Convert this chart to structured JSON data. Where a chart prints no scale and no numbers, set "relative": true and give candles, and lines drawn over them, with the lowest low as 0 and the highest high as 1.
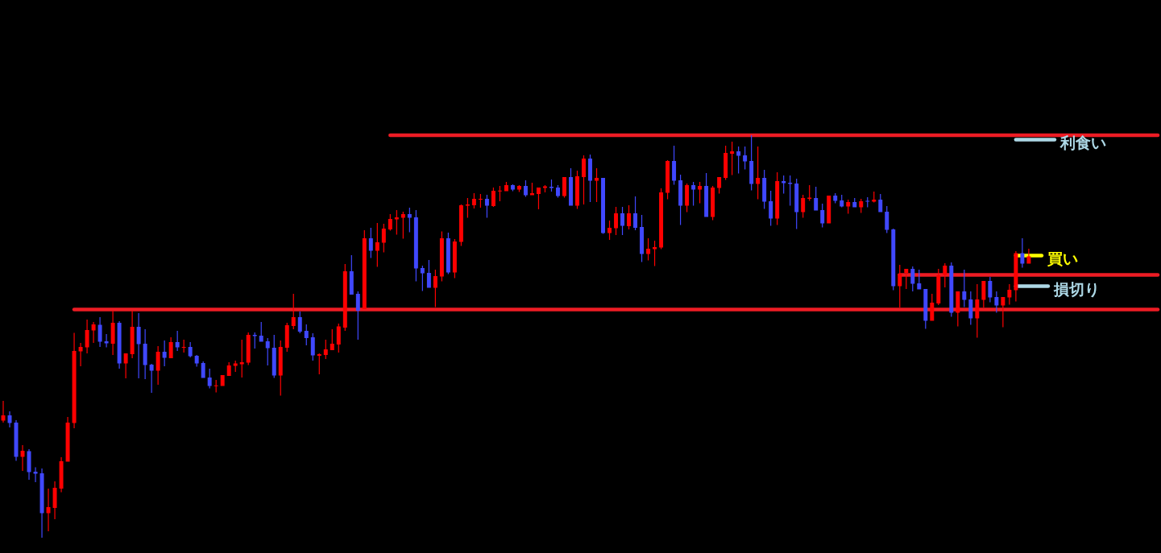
{
  "chart_data": {
    "type": "candlestick",
    "relative": true,
    "categories": [
      null,
      null,
      null,
      null,
      null,
      null,
      null,
      null,
      null,
      null,
      null,
      null,
      null,
      null,
      null,
      null,
      null,
      null,
      null,
      null,
      null,
      null,
      null,
      null,
      null,
      null,
      null,
      null,
      null,
      null,
      null,
      null,
      null,
      null,
      null,
      null,
      null,
      null,
      null,
      null,
      null,
      null,
      null,
      null,
      null,
      null,
      null,
      null,
      null,
      null,
      null,
      null,
      null,
      null,
      null,
      null,
      null,
      null,
      null,
      null,
      null,
      null,
      null,
      null,
      null,
      null,
      null,
      null,
      null,
      null,
      null,
      null,
      null,
      null,
      null,
      null,
      null,
      null,
      null,
      null,
      null,
      null,
      null,
      null,
      null,
      null,
      null,
      null,
      null,
      null,
      null,
      null,
      null,
      null,
      null,
      null,
      null,
      null,
      null,
      null,
      null,
      null,
      null,
      null,
      null,
      null,
      null,
      null,
      null,
      null,
      null,
      null,
      null,
      null,
      null,
      null,
      null,
      null,
      null,
      null,
      null,
      null,
      null,
      null,
      null,
      null,
      null,
      null,
      null,
      null,
      null,
      null,
      null,
      null,
      null,
      null,
      null,
      null,
      null,
      null,
      null,
      null,
      null,
      null,
      null,
      null,
      null,
      null,
      null,
      null,
      null,
      null,
      null,
      null,
      null,
      null,
      null,
      null,
      null,
      null,
      null,
      null,
      null,
      null,
      null,
      null,
      null,
      null,
      null,
      null,
      null,
      null,
      null,
      null,
      null,
      null,
      null,
      null,
      null,
      null
    ],
    "ohlc": [
      [
        0.291,
        0.34,
        0.286,
        0.304
      ],
      [
        0.304,
        0.314,
        0.274,
        0.285
      ],
      [
        0.286,
        0.292,
        0.191,
        0.201
      ],
      [
        0.201,
        0.23,
        0.166,
        0.216
      ],
      [
        0.215,
        0.22,
        0.144,
        0.163
      ],
      [
        0.164,
        0.175,
        0.138,
        0.159
      ],
      [
        0.16,
        0.172,
        0,
        0.061
      ],
      [
        0.061,
        0.122,
        0.016,
        0.076
      ],
      [
        0.074,
        0.14,
        0.046,
        0.124
      ],
      [
        0.122,
        0.2,
        0.113,
        0.19
      ],
      [
        0.189,
        0.3,
        0.189,
        0.286
      ],
      [
        0.285,
        0.509,
        0.272,
        0.464
      ],
      [
        0.463,
        0.484,
        0.426,
        0.474
      ],
      [
        0.473,
        0.542,
        0.458,
        0.516
      ],
      [
        0.515,
        0.536,
        0.484,
        0.53
      ],
      [
        0.529,
        0.548,
        0.474,
        0.487
      ],
      [
        0.488,
        0.506,
        0.473,
        0.483
      ],
      [
        0.482,
        0.564,
        0.454,
        0.534
      ],
      [
        0.534,
        0.538,
        0.42,
        0.433
      ],
      [
        0.433,
        0.458,
        0.396,
        0.458
      ],
      [
        0.456,
        0.564,
        0.446,
        0.524
      ],
      [
        0.524,
        0.558,
        0.396,
        0.481
      ],
      [
        0.482,
        0.518,
        0.394,
        0.429
      ],
      [
        0.43,
        0.432,
        0.36,
        0.415
      ],
      [
        0.415,
        0.476,
        0.38,
        0.462
      ],
      [
        0.462,
        0.49,
        0.426,
        0.447
      ],
      [
        0.446,
        0.498,
        0.446,
        0.486
      ],
      [
        0.486,
        0.514,
        0.464,
        0.473
      ],
      [
        0.472,
        0.492,
        0.46,
        0.474
      ],
      [
        0.474,
        0.486,
        0.448,
        0.451
      ],
      [
        0.452,
        0.454,
        0.425,
        0.433
      ],
      [
        0.434,
        0.438,
        0.397,
        0.397
      ],
      [
        0.398,
        0.42,
        0.371,
        0.377
      ],
      [
        0.377,
        0.392,
        0.361,
        0.378
      ],
      [
        0.377,
        0.404,
        0.377,
        0.404
      ],
      [
        0.402,
        0.436,
        0.402,
        0.428
      ],
      [
        0.427,
        0.44,
        0.412,
        0.433
      ],
      [
        0.431,
        0.492,
        0.398,
        0.436
      ],
      [
        0.435,
        0.51,
        0.429,
        0.504
      ],
      [
        0.504,
        0.51,
        0.47,
        0.501
      ],
      [
        0.502,
        0.536,
        0.487,
        0.487
      ],
      [
        0.488,
        0.496,
        0.428,
        0.471
      ],
      [
        0.472,
        0.504,
        0.397,
        0.403
      ],
      [
        0.403,
        0.49,
        0.353,
        0.474
      ],
      [
        0.472,
        0.534,
        0.462,
        0.528
      ],
      [
        0.526,
        0.606,
        0.518,
        0.548
      ],
      [
        0.548,
        0.562,
        0.508,
        0.512
      ],
      [
        0.514,
        0.53,
        0.478,
        0.496
      ],
      [
        0.498,
        0.508,
        0.44,
        0.453
      ],
      [
        0.452,
        0.458,
        0.406,
        0.456
      ],
      [
        0.454,
        0.492,
        0.444,
        0.468
      ],
      [
        0.466,
        0.518,
        0.466,
        0.482
      ],
      [
        0.48,
        0.532,
        0.46,
        0.525
      ],
      [
        0.522,
        0.68,
        0.514,
        0.662
      ],
      [
        0.662,
        0.702,
        0.604,
        0.604
      ],
      [
        0.606,
        0.612,
        0.492,
        0.564
      ],
      [
        0.568,
        0.764,
        0.568,
        0.744
      ],
      [
        0.744,
        0.77,
        0.695,
        0.713
      ],
      [
        0.713,
        0.782,
        0.673,
        0.734
      ],
      [
        0.733,
        0.78,
        0.709,
        0.768
      ],
      [
        0.766,
        0.804,
        0.763,
        0.792
      ],
      [
        0.791,
        0.814,
        0.753,
        0.796
      ],
      [
        0.795,
        0.81,
        0.743,
        0.804
      ],
      [
        0.804,
        0.82,
        0.759,
        0.795
      ],
      [
        0.796,
        0.814,
        0.637,
        0.669
      ],
      [
        0.67,
        0.676,
        0.613,
        0.657
      ],
      [
        0.658,
        0.69,
        0.621,
        0.621
      ],
      [
        0.621,
        0.666,
        0.573,
        0.65
      ],
      [
        0.649,
        0.761,
        0.637,
        0.744
      ],
      [
        0.744,
        0.758,
        0.655,
        0.659
      ],
      [
        0.659,
        0.742,
        0.645,
        0.736
      ],
      [
        0.735,
        0.828,
        0.725,
        0.826
      ],
      [
        0.825,
        0.844,
        0.795,
        0.828
      ],
      [
        0.826,
        0.856,
        0.818,
        0.842
      ],
      [
        0.84,
        0.854,
        0.82,
        0.842
      ],
      [
        0.842,
        0.852,
        0.795,
        0.825
      ],
      [
        0.824,
        0.87,
        0.822,
        0.862
      ],
      [
        0.861,
        0.874,
        0.836,
        0.862
      ],
      [
        0.861,
        0.884,
        0.861,
        0.876
      ],
      [
        0.876,
        0.878,
        0.861,
        0.865
      ],
      [
        0.865,
        0.876,
        0.859,
        0.874
      ],
      [
        0.874,
        0.888,
        0.847,
        0.851
      ],
      [
        0.851,
        0.882,
        0.851,
        0.856
      ],
      [
        0.854,
        0.87,
        0.816,
        0.87
      ],
      [
        0.869,
        0.876,
        0.858,
        0.873
      ],
      [
        0.872,
        0.89,
        0.86,
        0.869
      ],
      [
        0.87,
        0.876,
        0.845,
        0.849
      ],
      [
        0.849,
        0.896,
        0.845,
        0.896
      ],
      [
        0.896,
        0.918,
        0.825,
        0.825
      ],
      [
        0.825,
        0.912,
        0.817,
        0.898
      ],
      [
        0.896,
        0.95,
        0.828,
        0.942
      ],
      [
        0.942,
        0.952,
        0.834,
        0.887
      ],
      [
        0.887,
        0.918,
        0.834,
        0.894
      ],
      [
        0.894,
        0.894,
        0.755,
        0.757
      ],
      [
        0.757,
        0.788,
        0.74,
        0.77
      ],
      [
        0.769,
        0.822,
        0.752,
        0.806
      ],
      [
        0.806,
        0.822,
        0.752,
        0.775
      ],
      [
        0.774,
        0.826,
        0.766,
        0.806
      ],
      [
        0.806,
        0.848,
        0.764,
        0.77
      ],
      [
        0.772,
        0.802,
        0.685,
        0.705
      ],
      [
        0.705,
        0.744,
        0.689,
        0.718
      ],
      [
        0.717,
        0.738,
        0.675,
        0.722
      ],
      [
        0.721,
        0.868,
        0.717,
        0.858
      ],
      [
        0.857,
        0.938,
        0.841,
        0.936
      ],
      [
        0.936,
        0.974,
        0.877,
        0.887
      ],
      [
        0.888,
        0.902,
        0.777,
        0.825
      ],
      [
        0.825,
        0.88,
        0.809,
        0.876
      ],
      [
        0.876,
        0.884,
        0.825,
        0.865
      ],
      [
        0.865,
        0.884,
        0.831,
        0.874
      ],
      [
        0.874,
        0.906,
        0.797,
        0.797
      ],
      [
        0.797,
        0.874,
        0.789,
        0.87
      ],
      [
        0.869,
        0.896,
        0.855,
        0.896
      ],
      [
        0.894,
        0.974,
        0.889,
        0.956
      ],
      [
        0.954,
        0.984,
        0.901,
        0.96
      ],
      [
        0.96,
        0.972,
        0.905,
        0.949
      ],
      [
        0.95,
        0.972,
        0.915,
        0.935
      ],
      [
        0.936,
        1,
        0.863,
        0.879
      ],
      [
        0.879,
        0.972,
        0.841,
        0.894
      ],
      [
        0.894,
        0.914,
        0.817,
        0.835
      ],
      [
        0.836,
        0.862,
        0.775,
        0.793
      ],
      [
        0.793,
        0.908,
        0.777,
        0.886
      ],
      [
        0.886,
        0.9,
        0.855,
        0.881
      ],
      [
        0.882,
        0.9,
        0.825,
        0.879
      ],
      [
        0.88,
        0.892,
        0.767,
        0.809
      ],
      [
        0.809,
        0.852,
        0.795,
        0.844
      ],
      [
        0.842,
        0.876,
        0.837,
        0.845
      ],
      [
        0.844,
        0.872,
        0.813,
        0.813
      ],
      [
        0.814,
        0.83,
        0.771,
        0.781
      ],
      [
        0.781,
        0.85,
        0.781,
        0.85
      ],
      [
        0.85,
        0.856,
        0.831,
        0.837
      ],
      [
        0.838,
        0.852,
        0.821,
        0.823
      ],
      [
        0.823,
        0.84,
        0.805,
        0.834
      ],
      [
        0.834,
        0.844,
        0.821,
        0.821
      ],
      [
        0.821,
        0.842,
        0.807,
        0.836
      ],
      [
        0.837,
        0.846,
        0.821,
        0.835
      ],
      [
        0.835,
        0.86,
        0.833,
        0.84
      ],
      [
        0.84,
        0.854,
        0.809,
        0.809
      ],
      [
        0.81,
        0.824,
        0.757,
        0.765
      ],
      [
        0.766,
        0.768,
        0.615,
        0.625
      ],
      [
        0.625,
        0.678,
        0.572,
        0.656
      ],
      [
        0.658,
        0.668,
        0.618,
        0.668
      ],
      [
        0.668,
        0.674,
        0.612,
        0.631
      ],
      [
        0.632,
        0.666,
        0.617,
        0.617
      ],
      [
        0.618,
        0.618,
        0.519,
        0.539
      ],
      [
        0.539,
        0.606,
        0.539,
        0.584
      ],
      [
        0.582,
        0.668,
        0.578,
        0.652
      ],
      [
        0.653,
        0.682,
        0.622,
        0.676
      ],
      [
        0.676,
        0.684,
        0.549,
        0.559
      ],
      [
        0.559,
        0.612,
        0.525,
        0.612
      ],
      [
        0.612,
        0.666,
        0.573,
        0.591
      ],
      [
        0.592,
        0.612,
        0.529,
        0.545
      ],
      [
        0.545,
        0.63,
        0.497,
        0.592
      ],
      [
        0.591,
        0.638,
        0.572,
        0.638
      ],
      [
        0.638,
        0.648,
        0.585,
        0.597
      ],
      [
        0.598,
        0.612,
        0.559,
        0.577
      ],
      [
        0.577,
        0.598,
        0.523,
        0.598
      ],
      [
        0.597,
        0.63,
        0.579,
        0.616
      ],
      [
        0.615,
        0.712,
        0.587,
        0.707
      ],
      [
        0.707,
        0.744,
        0.671,
        0.681
      ],
      [
        0.681,
        0.718,
        0.681,
        0.699
      ],
      null,
      null,
      null,
      null,
      null,
      null,
      null,
      null,
      null,
      null,
      null,
      null,
      null,
      null,
      null,
      null,
      null,
      null,
      null,
      null
    ],
    "colors": [
      "#ff0000",
      "#4048ff",
      "#4048ff",
      "#ff0000",
      "#4048ff",
      "#4048ff",
      "#4048ff",
      "#ff0000",
      "#ff0000",
      "#ff0000",
      "#ff0000",
      "#ff0000",
      "#ff0000",
      "#ff0000",
      "#ff0000",
      "#4048ff",
      "#4048ff",
      "#ff0000",
      "#4048ff",
      "#ff0000",
      "#ff0000",
      "#4048ff",
      "#4048ff",
      "#4048ff",
      "#ff0000",
      "#4048ff",
      "#ff0000",
      "#4048ff",
      "#ff0000",
      "#4048ff",
      "#4048ff",
      "#4048ff",
      "#4048ff",
      "#ff0000",
      "#ff0000",
      "#ff0000",
      "#ff0000",
      "#ff0000",
      "#ff0000",
      "#4048ff",
      "#4048ff",
      "#4048ff",
      "#4048ff",
      "#ff0000",
      "#ff0000",
      "#ff0000",
      "#4048ff",
      "#4048ff",
      "#4048ff",
      "#ff0000",
      "#ff0000",
      "#ff0000",
      "#ff0000",
      "#ff0000",
      "#4048ff",
      "#4048ff",
      "#ff0000",
      "#4048ff",
      "#ff0000",
      "#ff0000",
      "#ff0000",
      "#ff0000",
      "#ff0000",
      "#4048ff",
      "#4048ff",
      "#4048ff",
      "#4048ff",
      "#ff0000",
      "#ff0000",
      "#4048ff",
      "#ff0000",
      "#ff0000",
      "#ff0000",
      "#ff0000",
      "#ff0000",
      "#4048ff",
      "#ff0000",
      "#ff0000",
      "#ff0000",
      "#4048ff",
      "#ff0000",
      "#4048ff",
      "#ff0000",
      "#ff0000",
      "#ff0000",
      "#4048ff",
      "#4048ff",
      "#ff0000",
      "#4048ff",
      "#ff0000",
      "#ff0000",
      "#4048ff",
      "#ff0000",
      "#4048ff",
      "#ff0000",
      "#ff0000",
      "#4048ff",
      "#ff0000",
      "#4048ff",
      "#4048ff",
      "#ff0000",
      "#ff0000",
      "#ff0000",
      "#ff0000",
      "#4048ff",
      "#4048ff",
      "#ff0000",
      "#4048ff",
      "#ff0000",
      "#4048ff",
      "#ff0000",
      "#ff0000",
      "#ff0000",
      "#ff0000",
      "#4048ff",
      "#4048ff",
      "#4048ff",
      "#ff0000",
      "#4048ff",
      "#4048ff",
      "#ff0000",
      "#4048ff",
      "#4048ff",
      "#4048ff",
      "#ff0000",
      "#ff0000",
      "#4048ff",
      "#4048ff",
      "#ff0000",
      "#4048ff",
      "#4048ff",
      "#ff0000",
      "#4048ff",
      "#ff0000",
      "#4048ff",
      "#ff0000",
      "#4048ff",
      "#4048ff",
      "#4048ff",
      "#ff0000",
      "#ff0000",
      "#4048ff",
      "#4048ff",
      "#4048ff",
      "#ff0000",
      "#ff0000",
      "#ff0000",
      "#4048ff",
      "#ff0000",
      "#4048ff",
      "#4048ff",
      "#ff0000",
      "#ff0000",
      "#4048ff",
      "#4048ff",
      "#ff0000",
      "#ff0000",
      "#ff0000",
      "#4048ff",
      "#ff0000",
      null,
      null,
      null,
      null,
      null,
      null,
      null,
      null,
      null,
      null,
      null,
      null,
      null,
      null,
      null,
      null,
      null,
      null,
      null,
      null
    ],
    "series": [
      {
        "type": "line",
        "color": "#ed1c24",
        "values": [
          null,
          null,
          null,
          null,
          null,
          null,
          null,
          null,
          null,
          null,
          null,
          null,
          null,
          null,
          null,
          null,
          null,
          null,
          null,
          null,
          null,
          null,
          null,
          null,
          null,
          null,
          null,
          null,
          null,
          null,
          null,
          null,
          null,
          null,
          null,
          null,
          null,
          null,
          null,
          null,
          null,
          null,
          null,
          null,
          null,
          null,
          null,
          null,
          null,
          null,
          null,
          null,
          null,
          null,
          null,
          null,
          null,
          null,
          null,
          null,
          1,
          1,
          1,
          1,
          1,
          1,
          1,
          1,
          1,
          1,
          1,
          1,
          1,
          1,
          1,
          1,
          1,
          1,
          1,
          1,
          1,
          1,
          1,
          1,
          1,
          1,
          1,
          1,
          1,
          1,
          1,
          1,
          1,
          1,
          1,
          1,
          1,
          1,
          1,
          1,
          1,
          1,
          1,
          1,
          1,
          1,
          1,
          1,
          1,
          1,
          1,
          1,
          1,
          1,
          1,
          1,
          1,
          1,
          1,
          1,
          1,
          1,
          1,
          1,
          1,
          1,
          1,
          1,
          1,
          1,
          1,
          1,
          1,
          1,
          1,
          1,
          1,
          1,
          1,
          1,
          1,
          1,
          1,
          1,
          1,
          1,
          1,
          1,
          1,
          1,
          1,
          1,
          1,
          1,
          1,
          1,
          1,
          1,
          1,
          1,
          1,
          1,
          1,
          1,
          1,
          1,
          1,
          1,
          1,
          1,
          1,
          1,
          1,
          1,
          1,
          1,
          1,
          1,
          1,
          1
        ]
      },
      {
        "type": "line",
        "color": "#ed1c24",
        "values": [
          null,
          null,
          null,
          null,
          null,
          null,
          null,
          null,
          null,
          null,
          null,
          0.567,
          0.567,
          0.567,
          0.567,
          0.567,
          0.567,
          0.567,
          0.567,
          0.567,
          0.567,
          0.567,
          0.567,
          0.567,
          0.567,
          0.567,
          0.567,
          0.567,
          0.567,
          0.567,
          0.567,
          0.567,
          0.567,
          0.567,
          0.567,
          0.567,
          0.567,
          0.567,
          0.567,
          0.567,
          0.567,
          0.567,
          0.567,
          0.567,
          0.567,
          0.567,
          0.567,
          0.567,
          0.567,
          0.567,
          0.567,
          0.567,
          0.567,
          0.567,
          0.567,
          0.567,
          0.567,
          0.567,
          0.567,
          0.567,
          0.567,
          0.567,
          0.567,
          0.567,
          0.567,
          0.567,
          0.567,
          0.567,
          0.567,
          0.567,
          0.567,
          0.567,
          0.567,
          0.567,
          0.567,
          0.567,
          0.567,
          0.567,
          0.567,
          0.567,
          0.567,
          0.567,
          0.567,
          0.567,
          0.567,
          0.567,
          0.567,
          0.567,
          0.567,
          0.567,
          0.567,
          0.567,
          0.567,
          0.567,
          0.567,
          0.567,
          0.567,
          0.567,
          0.567,
          0.567,
          0.567,
          0.567,
          0.567,
          0.567,
          0.567,
          0.567,
          0.567,
          0.567,
          0.567,
          0.567,
          0.567,
          0.567,
          0.567,
          0.567,
          0.567,
          0.567,
          0.567,
          0.567,
          0.567,
          0.567,
          0.567,
          0.567,
          0.567,
          0.567,
          0.567,
          0.567,
          0.567,
          0.567,
          0.567,
          0.567,
          0.567,
          0.567,
          0.567,
          0.567,
          0.567,
          0.567,
          0.567,
          0.567,
          0.567,
          0.567,
          0.567,
          0.567,
          0.567,
          0.567,
          0.567,
          0.567,
          0.567,
          0.567,
          0.567,
          0.567,
          0.567,
          0.567,
          0.567,
          0.567,
          0.567,
          0.567,
          0.567,
          0.567,
          0.567,
          0.567,
          0.567,
          0.567,
          0.567,
          0.567,
          0.567,
          0.567,
          0.567,
          0.567,
          0.567,
          0.567,
          0.567,
          0.567,
          0.567,
          0.567,
          0.567,
          0.567,
          0.567,
          0.567,
          0.567,
          0.567
        ]
      },
      {
        "type": "line",
        "color": "#ed1c24",
        "values": [
          null,
          null,
          null,
          null,
          null,
          null,
          null,
          null,
          null,
          null,
          null,
          null,
          null,
          null,
          null,
          null,
          null,
          null,
          null,
          null,
          null,
          null,
          null,
          null,
          null,
          null,
          null,
          null,
          null,
          null,
          null,
          null,
          null,
          null,
          null,
          null,
          null,
          null,
          null,
          null,
          null,
          null,
          null,
          null,
          null,
          null,
          null,
          null,
          null,
          null,
          null,
          null,
          null,
          null,
          null,
          null,
          null,
          null,
          null,
          null,
          null,
          null,
          null,
          null,
          null,
          null,
          null,
          null,
          null,
          null,
          null,
          null,
          null,
          null,
          null,
          null,
          null,
          null,
          null,
          null,
          null,
          null,
          null,
          null,
          null,
          null,
          null,
          null,
          null,
          null,
          null,
          null,
          null,
          null,
          null,
          null,
          null,
          null,
          null,
          null,
          null,
          null,
          null,
          null,
          null,
          null,
          null,
          null,
          null,
          null,
          null,
          null,
          null,
          null,
          null,
          null,
          null,
          null,
          null,
          null,
          null,
          null,
          null,
          null,
          null,
          null,
          null,
          null,
          null,
          null,
          null,
          null,
          null,
          null,
          null,
          null,
          null,
          null,
          null,
          0.653,
          0.653,
          0.653,
          0.653,
          0.653,
          0.653,
          0.653,
          0.653,
          0.653,
          0.653,
          0.653,
          0.653,
          0.653,
          0.653,
          0.653,
          0.653,
          0.653,
          0.653,
          0.653,
          0.653,
          0.653,
          0.653,
          0.653,
          0.653,
          0.653,
          0.653,
          0.653,
          0.653,
          0.653,
          0.653,
          0.653,
          0.653,
          0.653,
          0.653,
          0.653,
          0.653,
          0.653,
          0.653,
          0.653,
          0.653,
          0.653
        ]
      },
      {
        "type": "line",
        "name": "利食い",
        "color": "#add8e6",
        "values": [
          null,
          null,
          null,
          null,
          null,
          null,
          null,
          null,
          null,
          null,
          null,
          null,
          null,
          null,
          null,
          null,
          null,
          null,
          null,
          null,
          null,
          null,
          null,
          null,
          null,
          null,
          null,
          null,
          null,
          null,
          null,
          null,
          null,
          null,
          null,
          null,
          null,
          null,
          null,
          null,
          null,
          null,
          null,
          null,
          null,
          null,
          null,
          null,
          null,
          null,
          null,
          null,
          null,
          null,
          null,
          null,
          null,
          null,
          null,
          null,
          null,
          null,
          null,
          null,
          null,
          null,
          null,
          null,
          null,
          null,
          null,
          null,
          null,
          null,
          null,
          null,
          null,
          null,
          null,
          null,
          null,
          null,
          null,
          null,
          null,
          null,
          null,
          null,
          null,
          null,
          null,
          null,
          null,
          null,
          null,
          null,
          null,
          null,
          null,
          null,
          null,
          null,
          null,
          null,
          null,
          null,
          null,
          null,
          null,
          null,
          null,
          null,
          null,
          null,
          null,
          null,
          null,
          null,
          null,
          null,
          null,
          null,
          null,
          null,
          null,
          null,
          null,
          null,
          null,
          null,
          null,
          null,
          null,
          null,
          null,
          null,
          null,
          null,
          null,
          null,
          null,
          null,
          null,
          null,
          null,
          null,
          null,
          null,
          null,
          null,
          null,
          null,
          null,
          null,
          null,
          null,
          null,
          0.989,
          0.989,
          0.989,
          0.989,
          0.989,
          0.989,
          0.989,
          null,
          null,
          null,
          null,
          null,
          null,
          null,
          null,
          null,
          null,
          null,
          null,
          null,
          null,
          null,
          null
        ]
      },
      {
        "type": "line",
        "name": "買い",
        "color": "#ffff00",
        "values": [
          null,
          null,
          null,
          null,
          null,
          null,
          null,
          null,
          null,
          null,
          null,
          null,
          null,
          null,
          null,
          null,
          null,
          null,
          null,
          null,
          null,
          null,
          null,
          null,
          null,
          null,
          null,
          null,
          null,
          null,
          null,
          null,
          null,
          null,
          null,
          null,
          null,
          null,
          null,
          null,
          null,
          null,
          null,
          null,
          null,
          null,
          null,
          null,
          null,
          null,
          null,
          null,
          null,
          null,
          null,
          null,
          null,
          null,
          null,
          null,
          null,
          null,
          null,
          null,
          null,
          null,
          null,
          null,
          null,
          null,
          null,
          null,
          null,
          null,
          null,
          null,
          null,
          null,
          null,
          null,
          null,
          null,
          null,
          null,
          null,
          null,
          null,
          null,
          null,
          null,
          null,
          null,
          null,
          null,
          null,
          null,
          null,
          null,
          null,
          null,
          null,
          null,
          null,
          null,
          null,
          null,
          null,
          null,
          null,
          null,
          null,
          null,
          null,
          null,
          null,
          null,
          null,
          null,
          null,
          null,
          null,
          null,
          null,
          null,
          null,
          null,
          null,
          null,
          null,
          null,
          null,
          null,
          null,
          null,
          null,
          null,
          null,
          null,
          null,
          null,
          null,
          null,
          null,
          null,
          null,
          null,
          null,
          null,
          null,
          null,
          null,
          null,
          null,
          null,
          null,
          null,
          null,
          0.701,
          0.701,
          0.701,
          0.701,
          0.701,
          null,
          null,
          null,
          null,
          null,
          null,
          null,
          null,
          null,
          null,
          null,
          null,
          null,
          null,
          null,
          null,
          null,
          null
        ]
      },
      {
        "type": "line",
        "name": "損切り",
        "color": "#add8e6",
        "values": [
          null,
          null,
          null,
          null,
          null,
          null,
          null,
          null,
          null,
          null,
          null,
          null,
          null,
          null,
          null,
          null,
          null,
          null,
          null,
          null,
          null,
          null,
          null,
          null,
          null,
          null,
          null,
          null,
          null,
          null,
          null,
          null,
          null,
          null,
          null,
          null,
          null,
          null,
          null,
          null,
          null,
          null,
          null,
          null,
          null,
          null,
          null,
          null,
          null,
          null,
          null,
          null,
          null,
          null,
          null,
          null,
          null,
          null,
          null,
          null,
          null,
          null,
          null,
          null,
          null,
          null,
          null,
          null,
          null,
          null,
          null,
          null,
          null,
          null,
          null,
          null,
          null,
          null,
          null,
          null,
          null,
          null,
          null,
          null,
          null,
          null,
          null,
          null,
          null,
          null,
          null,
          null,
          null,
          null,
          null,
          null,
          null,
          null,
          null,
          null,
          null,
          null,
          null,
          null,
          null,
          null,
          null,
          null,
          null,
          null,
          null,
          null,
          null,
          null,
          null,
          null,
          null,
          null,
          null,
          null,
          null,
          null,
          null,
          null,
          null,
          null,
          null,
          null,
          null,
          null,
          null,
          null,
          null,
          null,
          null,
          null,
          null,
          null,
          null,
          null,
          null,
          null,
          null,
          null,
          null,
          null,
          null,
          null,
          null,
          null,
          null,
          null,
          null,
          null,
          null,
          null,
          null,
          0.625,
          0.625,
          0.625,
          0.625,
          0.625,
          0.625,
          null,
          null,
          null,
          null,
          null,
          null,
          null,
          null,
          null,
          null,
          null,
          null,
          null,
          null,
          null,
          null,
          null
        ]
      }
    ]
  }
}
